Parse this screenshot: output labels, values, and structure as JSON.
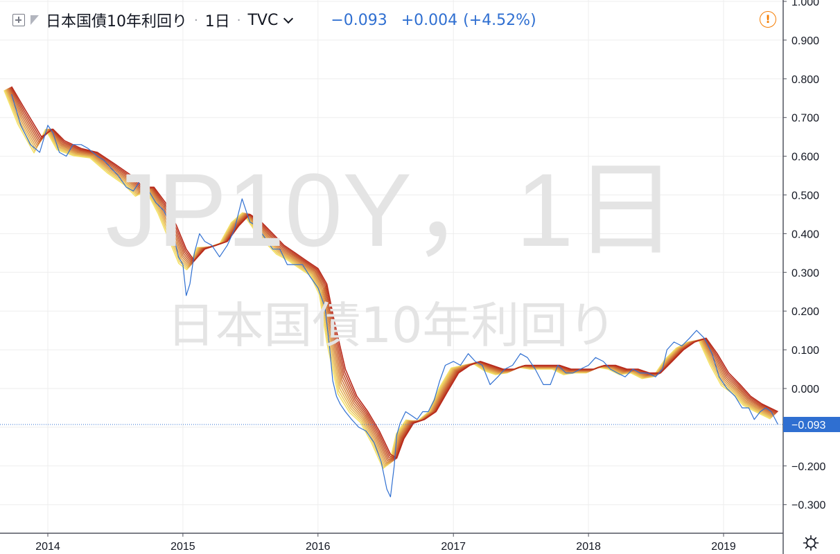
{
  "toolbar": {
    "symbol_name": "日本国債10年利回り",
    "interval": "1日",
    "exchange": "TVC",
    "last_value": "−0.093",
    "change": "+0.004",
    "change_percent": "(+4.52%)",
    "separator": "·"
  },
  "watermark": {
    "line1": "JP10Y，1日",
    "line2": "日本国債10年利回り"
  },
  "icons": {
    "expand": "expand-icon",
    "flag": "flag-icon",
    "chevron": "chevron-down-icon",
    "alert": "alert-icon",
    "settings": "settings-gear-icon"
  },
  "colors": {
    "price_line": "#2f6fd1",
    "ribbon_slow": "#b7281a",
    "ribbon_fast": "#f4e26a",
    "axis_label": "#131722",
    "grid": "#eeeeee",
    "price_tag_bg": "#2f6fd1"
  },
  "chart_data": {
    "type": "line",
    "symbol": "JP10Y",
    "title": "日本国債10年利回り",
    "interval": "1日",
    "xlabel": "",
    "ylabel": "",
    "x_ticks": [
      "2014",
      "2015",
      "2016",
      "2017",
      "2018",
      "2019"
    ],
    "y_ticks": [
      "1.000",
      "0.900",
      "0.800",
      "0.700",
      "0.600",
      "0.500",
      "0.400",
      "0.300",
      "0.200",
      "0.100",
      "0.000",
      "−0.100",
      "−0.200",
      "−0.300"
    ],
    "ylim": [
      -0.33,
      1.0
    ],
    "xlim": [
      "2013-09-25",
      "2019-05-28"
    ],
    "grid": true,
    "price_line_value": -0.093,
    "price_label": "−0.093",
    "series": [
      {
        "name": "JP10Y",
        "style": "line",
        "x": [
          "2013-09-25",
          "2013-10-20",
          "2013-11-15",
          "2013-12-10",
          "2014-01-01",
          "2014-01-15",
          "2014-02-01",
          "2014-02-20",
          "2014-03-10",
          "2014-04-01",
          "2014-04-20",
          "2014-05-15",
          "2014-06-01",
          "2014-06-20",
          "2014-07-10",
          "2014-08-01",
          "2014-08-20",
          "2014-09-10",
          "2014-10-01",
          "2014-10-20",
          "2014-11-10",
          "2014-12-01",
          "2014-12-20",
          "2015-01-01",
          "2015-01-10",
          "2015-01-20",
          "2015-02-01",
          "2015-02-15",
          "2015-03-01",
          "2015-03-20",
          "2015-04-10",
          "2015-05-01",
          "2015-05-20",
          "2015-06-10",
          "2015-07-01",
          "2015-07-20",
          "2015-08-10",
          "2015-09-01",
          "2015-09-20",
          "2015-10-10",
          "2015-11-01",
          "2015-11-20",
          "2015-12-10",
          "2016-01-01",
          "2016-01-20",
          "2016-02-01",
          "2016-02-10",
          "2016-02-20",
          "2016-03-01",
          "2016-03-15",
          "2016-04-01",
          "2016-04-20",
          "2016-05-10",
          "2016-06-01",
          "2016-06-20",
          "2016-07-05",
          "2016-07-15",
          "2016-07-25",
          "2016-08-01",
          "2016-08-10",
          "2016-08-25",
          "2016-09-10",
          "2016-09-25",
          "2016-10-10",
          "2016-10-25",
          "2016-11-10",
          "2016-11-25",
          "2016-12-10",
          "2017-01-01",
          "2017-01-20",
          "2017-02-10",
          "2017-03-01",
          "2017-03-20",
          "2017-04-10",
          "2017-05-01",
          "2017-05-20",
          "2017-06-10",
          "2017-07-01",
          "2017-07-20",
          "2017-08-10",
          "2017-09-01",
          "2017-09-20",
          "2017-10-10",
          "2017-11-01",
          "2017-11-20",
          "2017-12-10",
          "2018-01-01",
          "2018-01-20",
          "2018-02-10",
          "2018-03-01",
          "2018-03-20",
          "2018-04-10",
          "2018-05-01",
          "2018-05-20",
          "2018-06-10",
          "2018-07-01",
          "2018-07-20",
          "2018-08-01",
          "2018-08-20",
          "2018-09-10",
          "2018-10-01",
          "2018-10-20",
          "2018-11-10",
          "2018-12-01",
          "2018-12-20",
          "2019-01-10",
          "2019-02-01",
          "2019-02-20",
          "2019-03-10",
          "2019-03-25",
          "2019-04-10",
          "2019-04-25",
          "2019-05-10",
          "2019-05-28"
        ],
        "values": [
          0.76,
          0.68,
          0.63,
          0.61,
          0.68,
          0.66,
          0.61,
          0.6,
          0.63,
          0.63,
          0.62,
          0.6,
          0.59,
          0.57,
          0.55,
          0.52,
          0.51,
          0.54,
          0.51,
          0.48,
          0.46,
          0.42,
          0.34,
          0.32,
          0.24,
          0.27,
          0.35,
          0.4,
          0.38,
          0.37,
          0.34,
          0.37,
          0.41,
          0.49,
          0.43,
          0.42,
          0.39,
          0.36,
          0.36,
          0.32,
          0.32,
          0.32,
          0.29,
          0.26,
          0.21,
          0.11,
          0.02,
          -0.02,
          -0.04,
          -0.06,
          -0.08,
          -0.1,
          -0.11,
          -0.14,
          -0.19,
          -0.26,
          -0.28,
          -0.2,
          -0.12,
          -0.09,
          -0.06,
          -0.07,
          -0.08,
          -0.06,
          -0.06,
          -0.03,
          0.02,
          0.06,
          0.07,
          0.06,
          0.09,
          0.07,
          0.06,
          0.01,
          0.03,
          0.05,
          0.06,
          0.09,
          0.08,
          0.05,
          0.01,
          0.01,
          0.06,
          0.04,
          0.04,
          0.05,
          0.06,
          0.08,
          0.07,
          0.05,
          0.04,
          0.03,
          0.05,
          0.04,
          0.04,
          0.03,
          0.05,
          0.1,
          0.12,
          0.11,
          0.13,
          0.15,
          0.13,
          0.09,
          0.03,
          0.0,
          -0.02,
          -0.05,
          -0.05,
          -0.08,
          -0.06,
          -0.05,
          -0.06,
          -0.093
        ]
      },
      {
        "style": "ribbon",
        "description_colors": [
          "#b7281a",
          "#f4e26a"
        ],
        "x": [
          "2013-09-25",
          "2013-11-01",
          "2013-12-15",
          "2014-01-15",
          "2014-02-15",
          "2014-04-01",
          "2014-05-15",
          "2014-07-01",
          "2014-08-15",
          "2014-09-15",
          "2014-10-15",
          "2014-11-15",
          "2014-12-15",
          "2015-01-10",
          "2015-02-01",
          "2015-03-01",
          "2015-04-01",
          "2015-05-01",
          "2015-06-01",
          "2015-07-01",
          "2015-08-01",
          "2015-09-01",
          "2015-10-01",
          "2015-11-01",
          "2015-12-01",
          "2016-01-01",
          "2016-01-25",
          "2016-02-15",
          "2016-03-15",
          "2016-04-15",
          "2016-05-15",
          "2016-06-15",
          "2016-07-15",
          "2016-08-01",
          "2016-08-20",
          "2016-09-15",
          "2016-10-15",
          "2016-11-15",
          "2016-12-15",
          "2017-01-15",
          "2017-02-15",
          "2017-03-15",
          "2017-04-15",
          "2017-05-15",
          "2017-06-15",
          "2017-07-15",
          "2017-08-15",
          "2017-09-15",
          "2017-10-15",
          "2017-11-15",
          "2017-12-15",
          "2018-01-15",
          "2018-02-15",
          "2018-03-15",
          "2018-04-15",
          "2018-05-15",
          "2018-06-15",
          "2018-07-15",
          "2018-08-15",
          "2018-09-15",
          "2018-10-15",
          "2018-11-15",
          "2018-12-15",
          "2019-01-15",
          "2019-02-15",
          "2019-03-15",
          "2019-04-15",
          "2019-05-28"
        ],
        "values": [
          0.78,
          0.72,
          0.65,
          0.67,
          0.64,
          0.62,
          0.61,
          0.58,
          0.55,
          0.52,
          0.52,
          0.48,
          0.42,
          0.36,
          0.33,
          0.36,
          0.37,
          0.38,
          0.42,
          0.45,
          0.43,
          0.4,
          0.37,
          0.35,
          0.33,
          0.31,
          0.27,
          0.17,
          0.05,
          -0.02,
          -0.06,
          -0.11,
          -0.17,
          -0.18,
          -0.13,
          -0.09,
          -0.08,
          -0.06,
          -0.01,
          0.04,
          0.06,
          0.07,
          0.06,
          0.05,
          0.05,
          0.06,
          0.06,
          0.06,
          0.06,
          0.05,
          0.05,
          0.05,
          0.06,
          0.06,
          0.05,
          0.05,
          0.04,
          0.04,
          0.07,
          0.1,
          0.12,
          0.13,
          0.09,
          0.04,
          0.01,
          -0.02,
          -0.04,
          -0.06
        ]
      }
    ]
  }
}
